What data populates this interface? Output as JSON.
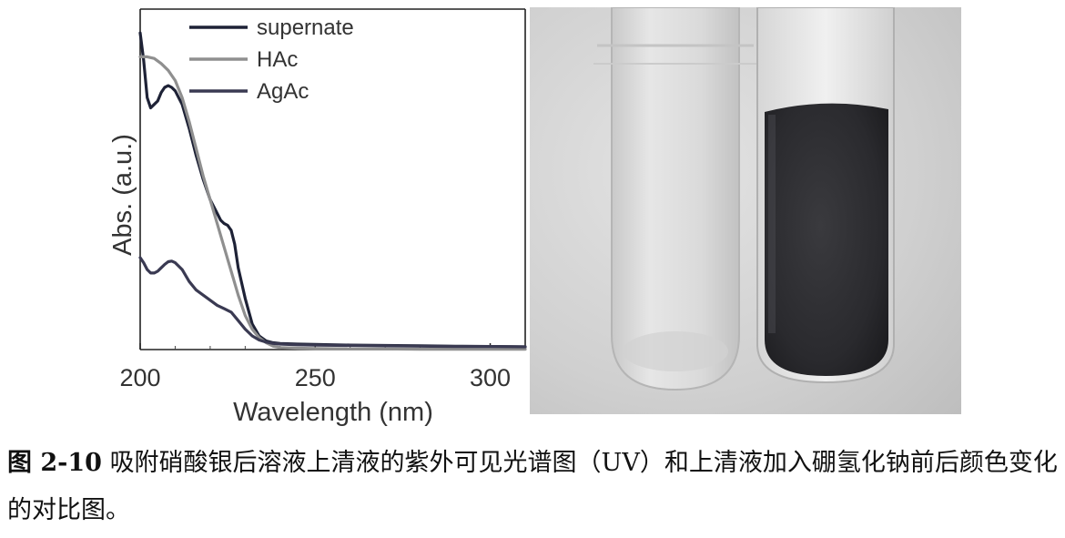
{
  "chart_data": {
    "type": "line",
    "title": "",
    "xlabel": "Wavelength (nm)",
    "ylabel": "Abs. (a.u.)",
    "xlim": [
      200,
      310
    ],
    "ylim": [
      0,
      1.0
    ],
    "xticks": [
      200,
      250,
      300
    ],
    "yticks_shown": false,
    "grid": false,
    "legend_position": "top-left",
    "series": [
      {
        "name": "supernate",
        "color": "#1e2236",
        "x": [
          200,
          201,
          202,
          203,
          204,
          205,
          206,
          207,
          208,
          209,
          210,
          212,
          214,
          216,
          218,
          220,
          222,
          223,
          224,
          225,
          226,
          227,
          228,
          230,
          232,
          234,
          236,
          238,
          240,
          245,
          250,
          260,
          270,
          280,
          290,
          300,
          310
        ],
        "y": [
          0.93,
          0.85,
          0.74,
          0.71,
          0.72,
          0.73,
          0.755,
          0.77,
          0.775,
          0.77,
          0.76,
          0.72,
          0.65,
          0.57,
          0.5,
          0.44,
          0.4,
          0.38,
          0.37,
          0.365,
          0.35,
          0.31,
          0.24,
          0.15,
          0.075,
          0.04,
          0.025,
          0.02,
          0.018,
          0.016,
          0.015,
          0.013,
          0.012,
          0.011,
          0.01,
          0.009,
          0.008
        ]
      },
      {
        "name": "HAc",
        "color": "#8f8f8f",
        "x": [
          200,
          202,
          204,
          206,
          208,
          210,
          212,
          214,
          216,
          218,
          220,
          222,
          224,
          226,
          228,
          230,
          232,
          234,
          236,
          238,
          240,
          245,
          250,
          260,
          270,
          280,
          290,
          300,
          310
        ],
        "y": [
          0.86,
          0.86,
          0.855,
          0.84,
          0.82,
          0.79,
          0.74,
          0.67,
          0.59,
          0.51,
          0.44,
          0.37,
          0.3,
          0.23,
          0.16,
          0.1,
          0.06,
          0.035,
          0.02,
          0.01,
          0.006,
          0.004,
          0.003,
          0.002,
          0.002,
          0.001,
          0.001,
          0.001,
          0.001
        ]
      },
      {
        "name": "AgAc",
        "color": "#3a3a52",
        "x": [
          200,
          201,
          202,
          203,
          204,
          205,
          206,
          207,
          208,
          209,
          210,
          212,
          214,
          216,
          218,
          220,
          222,
          224,
          226,
          228,
          230,
          232,
          234,
          236,
          238,
          240,
          245,
          250,
          260,
          270,
          280,
          290,
          300,
          310
        ],
        "y": [
          0.27,
          0.255,
          0.235,
          0.225,
          0.225,
          0.23,
          0.24,
          0.25,
          0.258,
          0.26,
          0.255,
          0.235,
          0.2,
          0.175,
          0.16,
          0.145,
          0.13,
          0.12,
          0.11,
          0.085,
          0.06,
          0.04,
          0.028,
          0.022,
          0.018,
          0.016,
          0.014,
          0.013,
          0.012,
          0.011,
          0.01,
          0.009,
          0.009,
          0.008
        ]
      }
    ]
  },
  "photo": {
    "description_icon": "test-tubes-photo",
    "left_tube_color": "#dcdcdc",
    "right_tube_liquid_color": "#2b2b2e",
    "background_color": "#cfcfcf"
  },
  "caption": {
    "label": "图 2-10",
    "text": "吸附硝酸银后溶液上清液的紫外可见光谱图（UV）和上清液加入硼氢化钠前后颜色变化的对比图。"
  }
}
